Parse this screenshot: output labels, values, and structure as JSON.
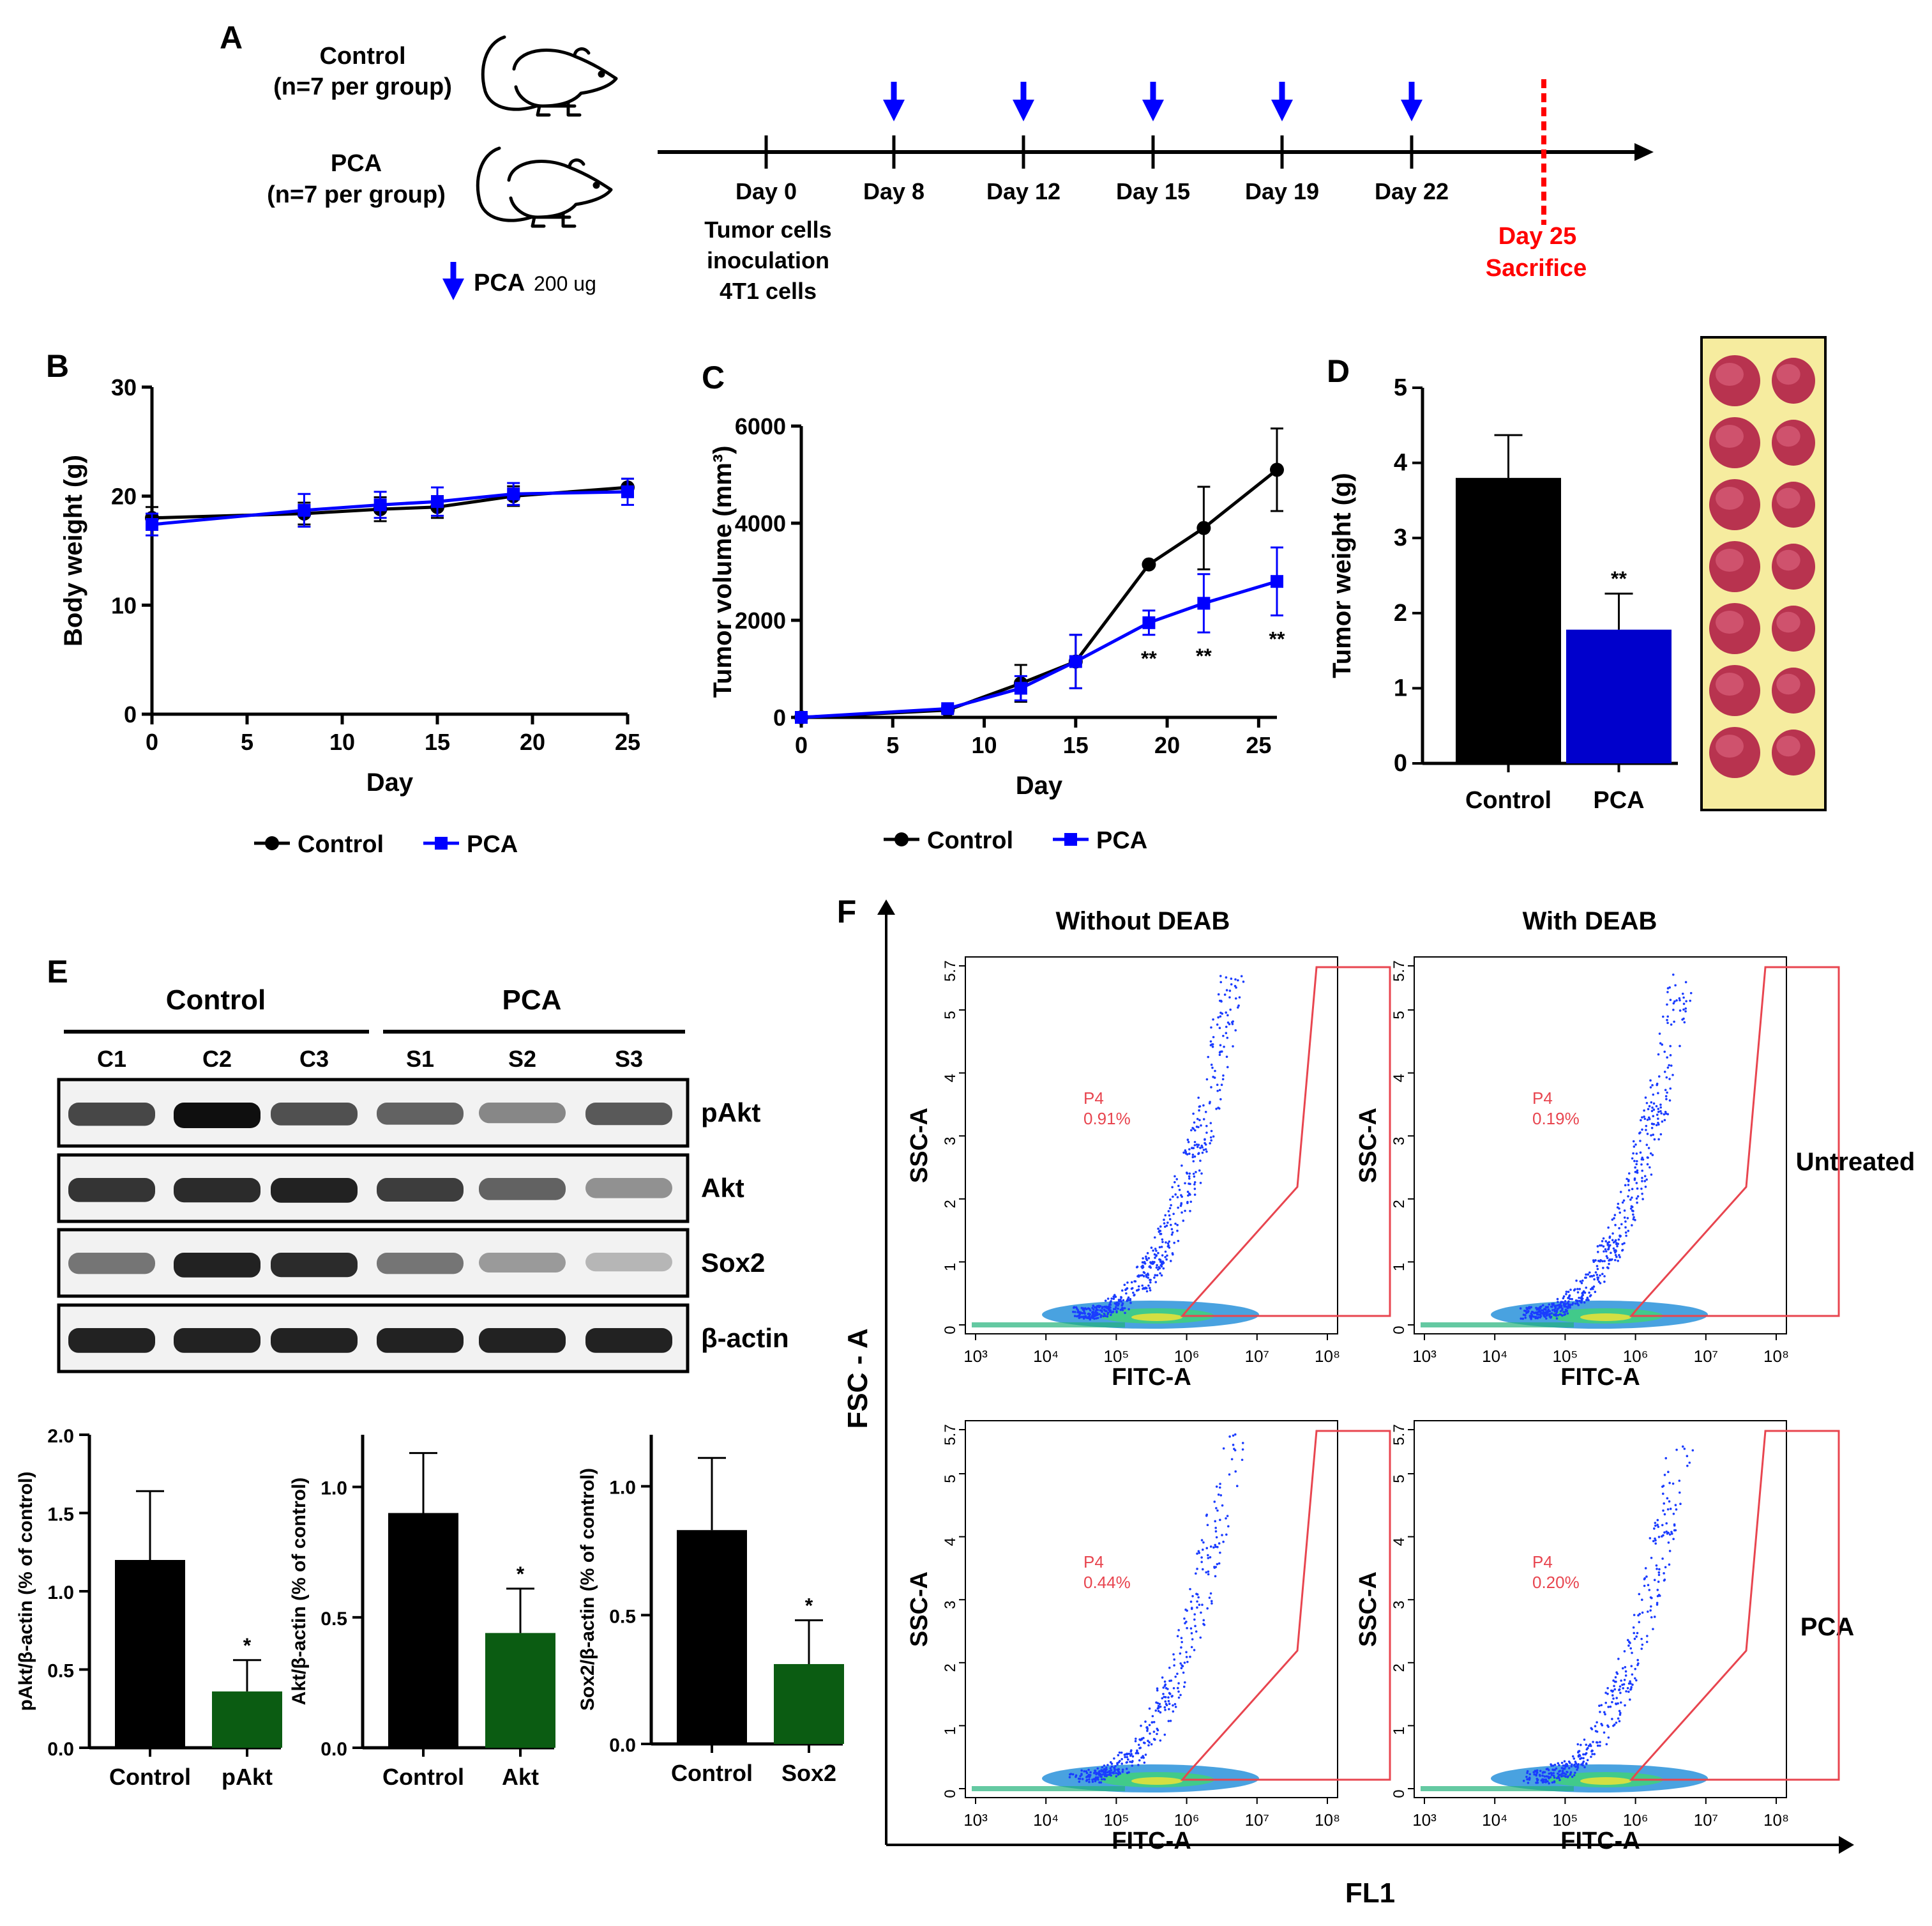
{
  "colors": {
    "control": "#000000",
    "pca": "#0000ff",
    "pca_bar": "#0000cc",
    "green": "#0b5c12",
    "red": "#ff0000",
    "gate": "#e8454f"
  },
  "panel_a": {
    "label": "A",
    "group_control": {
      "name": "Control",
      "n": "(n=7 per group)"
    },
    "group_pca": {
      "name": "PCA",
      "n": "(n=7 per group)"
    },
    "dose_legend": {
      "drug": "PCA",
      "dose": "200 ug",
      "icon": "down-arrow-icon"
    },
    "mouse_icon": "mouse-icon",
    "timeline_days": [
      "Day 0",
      "Day 8",
      "Day 12",
      "Day 15",
      "Day 19",
      "Day 22"
    ],
    "day0_note": [
      "Tumor cells",
      "inoculation",
      "4T1 cells"
    ],
    "sacrifice": {
      "day": "Day 25",
      "label": "Sacrifice"
    }
  },
  "panel_b": {
    "label": "B"
  },
  "panel_c": {
    "label": "C"
  },
  "panel_d": {
    "label": "D",
    "photo_icon": "excised-tumor-photo"
  },
  "panel_e": {
    "label": "E",
    "group_control": "Control",
    "group_pca": "PCA",
    "lanes": [
      "C1",
      "C2",
      "C3",
      "S1",
      "S2",
      "S3"
    ],
    "blots": [
      {
        "protein": "pAkt",
        "intensity": [
          0.7,
          1.0,
          0.65,
          0.55,
          0.35,
          0.6
        ]
      },
      {
        "protein": "Akt",
        "intensity": [
          0.8,
          0.85,
          0.9,
          0.75,
          0.55,
          0.3
        ]
      },
      {
        "protein": "Sox2",
        "intensity": [
          0.45,
          0.9,
          0.85,
          0.45,
          0.25,
          0.1
        ]
      },
      {
        "protein": "β-actin",
        "intensity": [
          0.9,
          0.9,
          0.9,
          0.9,
          0.9,
          0.9
        ]
      }
    ]
  },
  "panel_f": {
    "label": "F",
    "col_titles": [
      "Without DEAB",
      "With DEAB"
    ],
    "row_labels": [
      "Untreated",
      "PCA"
    ],
    "y_axis": "FSC - A",
    "x_axis": "FL1",
    "plot_ylabel": "SSC-A",
    "plot_xlabel": "FITC-A",
    "x_ticks": [
      "10³",
      "10⁴",
      "10⁵",
      "10⁶",
      "10⁷",
      "10⁸"
    ],
    "y_ticks": [
      "0",
      "1",
      "2",
      "3",
      "4",
      "5",
      "5.7"
    ],
    "gate_name": "P4",
    "percents": [
      [
        "0.91%",
        "0.19%"
      ],
      [
        "0.44%",
        "0.20%"
      ]
    ]
  },
  "chart_data": [
    {
      "id": "B",
      "type": "line",
      "title": "",
      "xlabel": "Day",
      "ylabel": "Body weight (g)",
      "xlim": [
        0,
        25
      ],
      "ylim": [
        0,
        30
      ],
      "xticks": [
        0,
        5,
        10,
        15,
        20,
        25
      ],
      "yticks": [
        0,
        10,
        20,
        30
      ],
      "legend": [
        "Control",
        "PCA"
      ],
      "legend_position": "bottom",
      "series": [
        {
          "name": "Control",
          "x": [
            0,
            8,
            12,
            15,
            19,
            25
          ],
          "y": [
            18.0,
            18.4,
            18.8,
            19.0,
            20.0,
            20.8
          ],
          "err": [
            1.0,
            1.0,
            1.1,
            1.0,
            0.9,
            0.8
          ]
        },
        {
          "name": "PCA",
          "x": [
            0,
            8,
            12,
            15,
            19,
            25
          ],
          "y": [
            17.4,
            18.7,
            19.2,
            19.5,
            20.2,
            20.4
          ],
          "err": [
            1.0,
            1.5,
            1.2,
            1.3,
            1.0,
            1.2
          ]
        }
      ]
    },
    {
      "id": "C",
      "type": "line",
      "title": "",
      "xlabel": "Day",
      "ylabel": "Tumor volume (mm³)",
      "xlim": [
        0,
        26
      ],
      "ylim": [
        0,
        6000
      ],
      "xticks": [
        0,
        5,
        10,
        15,
        20,
        25
      ],
      "yticks": [
        0,
        2000,
        4000,
        6000
      ],
      "legend": [
        "Control",
        "PCA"
      ],
      "legend_position": "bottom",
      "series": [
        {
          "name": "Control",
          "x": [
            0,
            8,
            12,
            15,
            19,
            22,
            26
          ],
          "y": [
            0,
            150,
            700,
            1150,
            3150,
            3900,
            5100
          ],
          "err": [
            0,
            60,
            380,
            550,
            0,
            850,
            850
          ]
        },
        {
          "name": "PCA",
          "x": [
            0,
            8,
            12,
            15,
            19,
            22,
            26
          ],
          "y": [
            0,
            180,
            600,
            1150,
            1950,
            2350,
            2800
          ],
          "err": [
            0,
            60,
            250,
            550,
            250,
            600,
            700
          ]
        }
      ],
      "annotations": [
        {
          "x": 19,
          "text": "**"
        },
        {
          "x": 22,
          "text": "**"
        },
        {
          "x": 26,
          "text": "**"
        }
      ]
    },
    {
      "id": "D",
      "type": "bar",
      "title": "",
      "xlabel": "",
      "ylabel": "Tumor weight (g)",
      "ylim": [
        0,
        5
      ],
      "yticks": [
        0,
        1,
        2,
        3,
        4,
        5
      ],
      "categories": [
        "Control",
        "PCA"
      ],
      "values": [
        3.8,
        1.78
      ],
      "err": [
        0.57,
        0.48
      ],
      "annotations": [
        "",
        "**"
      ]
    },
    {
      "id": "E1",
      "type": "bar",
      "title": "",
      "ylabel": "pAkt/β-actin (% of control)",
      "ylim": [
        0,
        2.0
      ],
      "yticks": [
        0.0,
        0.5,
        1.0,
        1.5,
        2.0
      ],
      "categories": [
        "Control",
        "pAkt"
      ],
      "values": [
        1.2,
        0.36
      ],
      "err": [
        0.44,
        0.2
      ],
      "annotations": [
        "",
        "*"
      ]
    },
    {
      "id": "E2",
      "type": "bar",
      "title": "",
      "ylabel": "Akt/β-actin (% of control)",
      "ylim": [
        0,
        1.2
      ],
      "yticks": [
        0.0,
        0.5,
        1.0
      ],
      "categories": [
        "Control",
        "Akt"
      ],
      "values": [
        0.9,
        0.44
      ],
      "err": [
        0.23,
        0.17
      ],
      "annotations": [
        "",
        "*"
      ]
    },
    {
      "id": "E3",
      "type": "bar",
      "title": "",
      "ylabel": "Sox2/β-actin (% of control)",
      "ylim": [
        0,
        1.2
      ],
      "yticks": [
        0.0,
        0.5,
        1.0
      ],
      "categories": [
        "Control",
        "Sox2"
      ],
      "values": [
        0.83,
        0.31
      ],
      "err": [
        0.28,
        0.17
      ],
      "annotations": [
        "",
        "*"
      ]
    }
  ]
}
